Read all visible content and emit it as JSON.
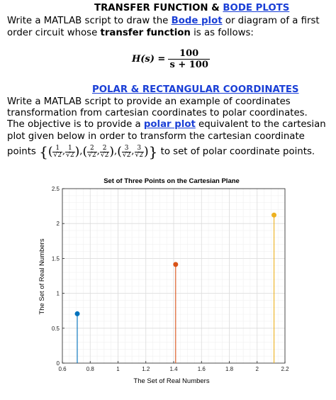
{
  "heading1": {
    "prefix": "TRANSFER FUNCTION & ",
    "link": "BODE PLOTS"
  },
  "para1": {
    "line1_a": "Write a MATLAB script to draw the ",
    "line1_link": "Bode plot",
    "line1_b": " or diagram of a first",
    "line2_a": "order circuit whose ",
    "line2_bold": "transfer function",
    "line2_b": " is as follows:"
  },
  "formula": {
    "lhs": "H(s) =",
    "numerator": "100",
    "denominator": "s + 100"
  },
  "heading2": {
    "link": "POLAR & RECTANGULAR COORDINATES"
  },
  "para2": {
    "line1": "Write a   MATLAB script to provide an example of coordinates",
    "line2": "transformation from cartesian coordinates to polar coordinates.",
    "line3_a": "The objective is to provide a ",
    "line3_link": "polar plot",
    "line3_b": " equivalent to the cartesian",
    "line4": "plot given below in order to transform the cartesian coordinate",
    "line5_a": "points",
    "line5_b": "to set of polar coordinate points."
  },
  "points_set": {
    "open": "{",
    "close": "}",
    "sep": ",",
    "sqrt_den": "√2",
    "p1": {
      "x": "1",
      "y": "1"
    },
    "p2": {
      "x": "2",
      "y": "2"
    },
    "p3": {
      "x": "3",
      "y": "3"
    }
  },
  "chart_data": {
    "type": "stem",
    "title": "Set of Three Points on the Cartesian Plane",
    "xlabel": "The Set of Real Numbers",
    "ylabel": "The Set of Real Numbers",
    "xlim": [
      0.6,
      2.2
    ],
    "ylim": [
      0,
      2.5
    ],
    "xticks": [
      0.6,
      0.8,
      1,
      1.2,
      1.4,
      1.6,
      1.8,
      2,
      2.2
    ],
    "xtick_labels": [
      "0.6",
      "0.8",
      "1",
      "1.2",
      "1.4",
      "1.6",
      "1.8",
      "2",
      "2.2"
    ],
    "yticks": [
      0,
      0.5,
      1,
      1.5,
      2,
      2.5
    ],
    "ytick_labels": [
      "0",
      "0.5",
      "1",
      "1.5",
      "2",
      "2.5"
    ],
    "grid": true,
    "series": [
      {
        "x": 0.7071,
        "y": 0.7071,
        "color": "#0072bd"
      },
      {
        "x": 1.4142,
        "y": 1.4142,
        "color": "#d95319"
      },
      {
        "x": 2.1213,
        "y": 2.1213,
        "color": "#edb120"
      }
    ]
  }
}
